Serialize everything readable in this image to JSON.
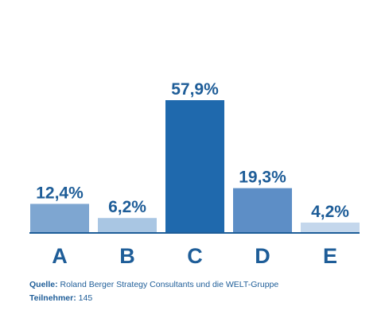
{
  "chart_data": {
    "type": "bar",
    "categories": [
      "A",
      "B",
      "C",
      "D",
      "E"
    ],
    "values": [
      12.4,
      6.2,
      57.9,
      19.3,
      4.2
    ],
    "data_labels": [
      "12,4%",
      "6,2%",
      "57,9%",
      "19,3%",
      "4,2%"
    ],
    "ylim": [
      0,
      57.9
    ],
    "grid": false,
    "legend": "none",
    "bar_colors": [
      "#7ea6d1",
      "#a9c6e3",
      "#1f69ad",
      "#5d8ec6",
      "#c4d7ec"
    ],
    "label_color": "#1e5d98",
    "baseline_color": "#1e5d98"
  },
  "footer": {
    "source_label": "Quelle:",
    "source_text": "Roland Berger Strategy Consultants und die WELT-Gruppe",
    "participants_label": "Teilnehmer:",
    "participants_text": "145"
  }
}
